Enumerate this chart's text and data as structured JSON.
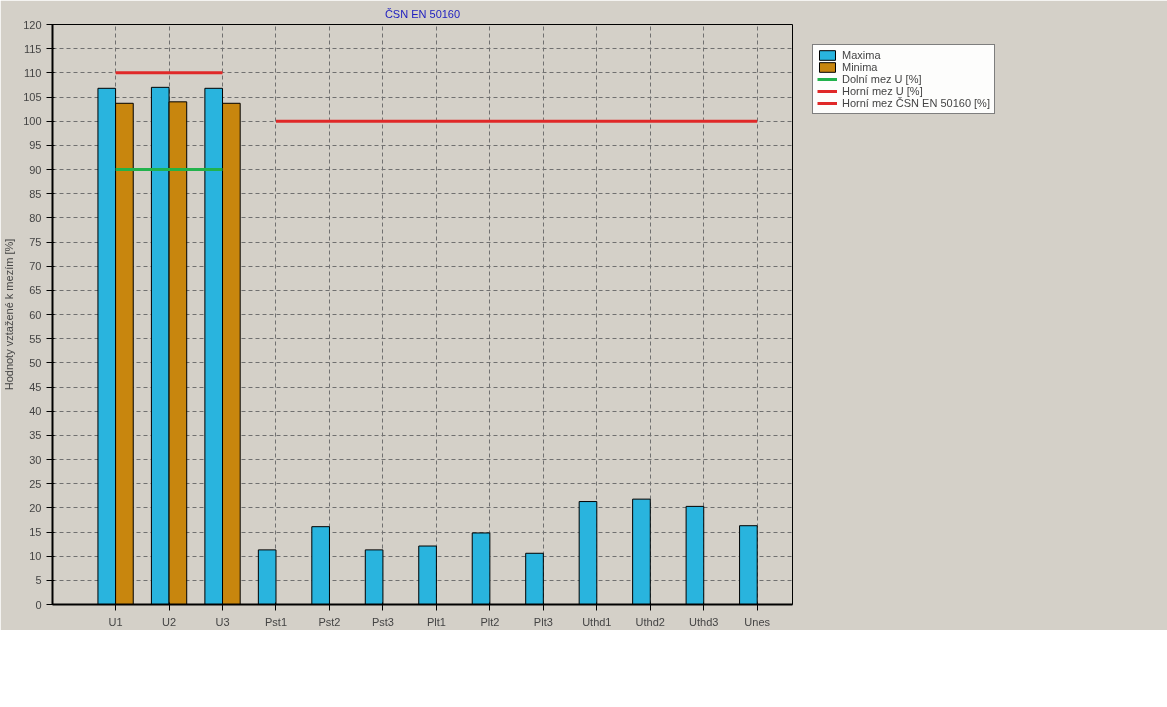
{
  "chart_data": {
    "type": "bar",
    "title": "ČSN EN 50160",
    "ylabel": "Hodnoty vztažené k mezím [%]",
    "categories": [
      "U1",
      "U2",
      "U3",
      "Pst1",
      "Pst2",
      "Pst3",
      "Plt1",
      "Plt2",
      "Plt3",
      "Uthd1",
      "Uthd2",
      "Uthd3",
      "Unes"
    ],
    "series": [
      {
        "name": "Maxima",
        "color": "#29b4de",
        "values": [
          106.8,
          107.0,
          106.8,
          11.3,
          16.1,
          11.3,
          12.1,
          14.8,
          10.6,
          21.3,
          21.8,
          20.3,
          16.3
        ]
      },
      {
        "name": "Minima",
        "color": "#c8860e",
        "values": [
          103.7,
          104.0,
          103.7,
          null,
          null,
          null,
          null,
          null,
          null,
          null,
          null,
          null,
          null
        ]
      },
      {
        "name": "Dolní mez U [%]",
        "type": "line",
        "color": "#22b24c",
        "values": [
          90,
          90,
          90,
          null,
          null,
          null,
          null,
          null,
          null,
          null,
          null,
          null,
          null
        ]
      },
      {
        "name": "Horní mez U [%]",
        "type": "line",
        "color": "#e02828",
        "values": [
          110,
          110,
          110,
          null,
          null,
          null,
          null,
          null,
          null,
          null,
          null,
          null,
          null
        ]
      },
      {
        "name": "Horní mez ČSN EN 50160 [%]",
        "type": "line",
        "color": "#e02828",
        "values": [
          null,
          null,
          null,
          100,
          100,
          100,
          100,
          100,
          100,
          100,
          100,
          100,
          100
        ]
      }
    ],
    "ylim": [
      0,
      120
    ],
    "yticks": [
      0,
      5,
      10,
      15,
      20,
      25,
      30,
      35,
      40,
      45,
      50,
      55,
      60,
      65,
      70,
      75,
      80,
      85,
      90,
      95,
      100,
      105,
      110,
      115,
      120
    ],
    "grid": true,
    "legend": "top right"
  }
}
